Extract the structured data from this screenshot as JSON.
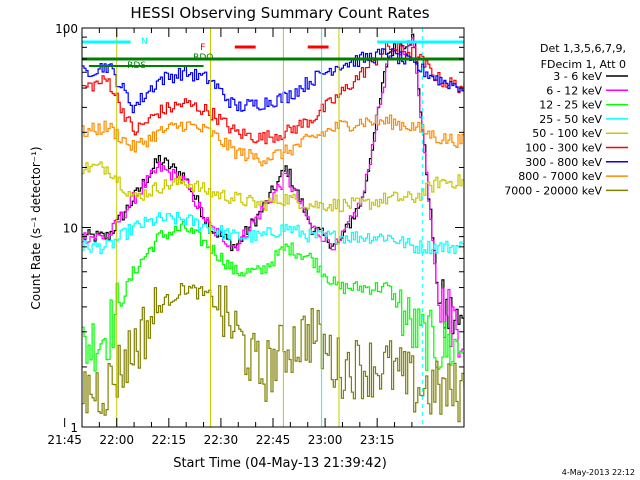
{
  "chart_data": {
    "type": "line",
    "title": "HESSI Observing Summary Count Rates",
    "xlabel": "Start Time (04-May-13 21:39:42)",
    "ylabel": "Count Rate (s⁻¹ detector⁻¹)",
    "y_scale": "log",
    "ylim": [
      1,
      100
    ],
    "xlim_minutes": [
      -10,
      100
    ],
    "x_ticks": [
      {
        "label": "21:45",
        "minute": -15
      },
      {
        "label": "22:00",
        "minute": 0
      },
      {
        "label": "22:15",
        "minute": 15
      },
      {
        "label": "22:30",
        "minute": 30
      },
      {
        "label": "22:45",
        "minute": 45
      },
      {
        "label": "23:00",
        "minute": 60
      },
      {
        "label": "23:15",
        "minute": 75
      }
    ],
    "y_tick_labels": [
      "100",
      "10",
      "1"
    ],
    "legend_header": [
      "Det 1,3,5,6,7,9,",
      "FDecim 1, Att 0"
    ],
    "legend_position": "right",
    "footer_date": "4-May-2013 22:12",
    "flags": {
      "labels": [
        "N",
        "F",
        "RDO",
        "RDS"
      ]
    },
    "series": [
      {
        "name": "3 - 6 keV",
        "color": "#000000",
        "values": [
          9,
          9,
          14,
          22,
          18,
          10,
          8,
          12,
          20,
          10,
          8,
          14,
          75,
          90,
          4,
          3
        ]
      },
      {
        "name": "6 - 12 keV",
        "color": "#ff00ff",
        "values": [
          9,
          9,
          14,
          20,
          17,
          10,
          8,
          12,
          18,
          10,
          8,
          14,
          70,
          85,
          4,
          3
        ]
      },
      {
        "name": "12 - 25 keV",
        "color": "#00ff00",
        "values": [
          2.5,
          3,
          6,
          9,
          10,
          8,
          6,
          6,
          8,
          7,
          5,
          5,
          5,
          3,
          2.5,
          2.5
        ]
      },
      {
        "name": "25 - 50 keV",
        "color": "#00ffff",
        "values": [
          8,
          8,
          10,
          11,
          11,
          10,
          9,
          9,
          10,
          9,
          9,
          9,
          9,
          8,
          8,
          8
        ]
      },
      {
        "name": "50 - 100 keV",
        "color": "#c8c800",
        "values": [
          20,
          20,
          14,
          16,
          17,
          15,
          14,
          13,
          14,
          13,
          13,
          13,
          14,
          14,
          17,
          17
        ]
      },
      {
        "name": "100 - 300 keV",
        "color": "#ff0000",
        "values": [
          50,
          55,
          30,
          38,
          42,
          38,
          30,
          28,
          30,
          35,
          45,
          60,
          80,
          75,
          55,
          50
        ]
      },
      {
        "name": "300 - 800 keV",
        "color": "#0000ff",
        "values": [
          60,
          65,
          40,
          55,
          60,
          55,
          40,
          42,
          45,
          55,
          65,
          70,
          75,
          65,
          55,
          50
        ]
      },
      {
        "name": "800 - 7000 keV",
        "color": "#ff8c00",
        "values": [
          30,
          32,
          25,
          30,
          33,
          30,
          24,
          22,
          24,
          28,
          32,
          34,
          34,
          32,
          28,
          27
        ]
      },
      {
        "name": "7000 - 20000 keV",
        "color": "#808000",
        "values": [
          1.5,
          1.6,
          2.5,
          4,
          5,
          4.5,
          3,
          1.8,
          2.5,
          3,
          2,
          2,
          2,
          1.6,
          1.5,
          1.5
        ]
      }
    ]
  }
}
